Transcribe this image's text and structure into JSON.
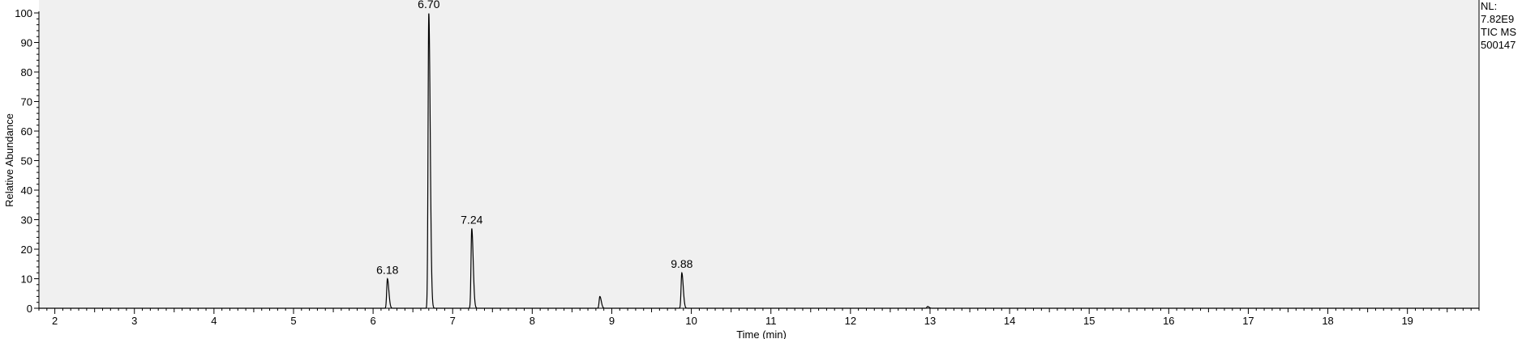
{
  "chart_data": {
    "type": "line",
    "xlabel": "Time (min)",
    "ylabel": "Relative Abundance",
    "xlim": [
      1.8,
      19.9
    ],
    "ylim": [
      0,
      100
    ],
    "x_ticks": [
      2,
      3,
      4,
      5,
      6,
      7,
      8,
      9,
      10,
      11,
      12,
      13,
      14,
      15,
      16,
      17,
      18,
      19
    ],
    "y_ticks": [
      0,
      10,
      20,
      30,
      40,
      50,
      60,
      70,
      80,
      90,
      100
    ],
    "grid": false,
    "background": "#f0f0f0",
    "line_color": "#000000",
    "series": [
      {
        "peaks": [
          {
            "rt": 6.18,
            "height": 10,
            "label": "6.18"
          },
          {
            "rt": 6.7,
            "height": 100,
            "label": "6.70"
          },
          {
            "rt": 7.24,
            "height": 27,
            "label": "7.24"
          },
          {
            "rt": 8.85,
            "height": 4,
            "label": ""
          },
          {
            "rt": 9.88,
            "height": 12,
            "label": "9.88"
          },
          {
            "rt": 12.97,
            "height": 0.6,
            "label": ""
          }
        ]
      }
    ],
    "info": {
      "nl_label": "NL:",
      "nl_value": "7.82E9",
      "trace": "TIC  MS",
      "sample": "500147"
    }
  }
}
